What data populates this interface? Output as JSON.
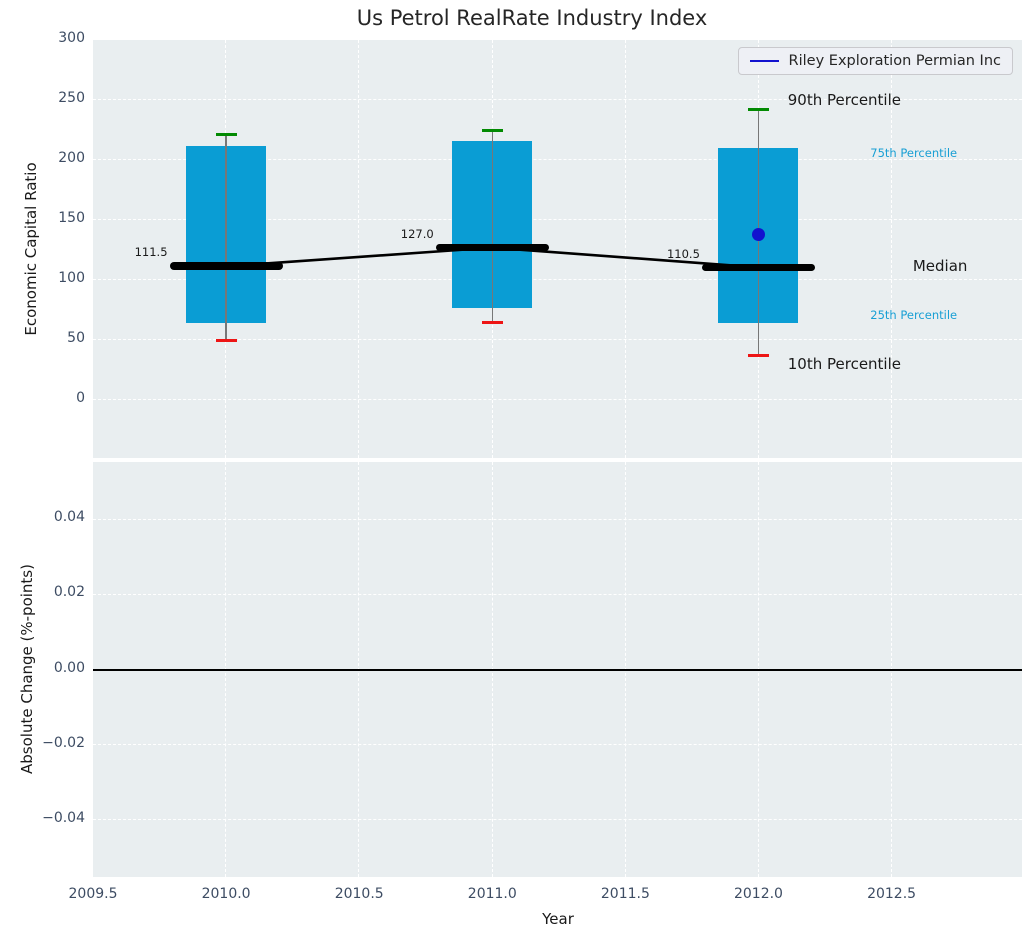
{
  "title": "Us Petrol RealRate Industry Index",
  "legend": {
    "label": "Riley Exploration Permian Inc"
  },
  "colors": {
    "bar": "#0a9dd4",
    "cap_90": "#028a02",
    "cap_10": "#ed1515",
    "median": "#000000",
    "whisker": "#777777",
    "company": "#1212cf",
    "axes_bg": "#e9eef0",
    "grid": "#ffffff",
    "tick_label": "#3d4c63",
    "text_dark": "#1a1a1a",
    "percentile_blue": "#189fd4",
    "zero_line": "#000000"
  },
  "chart_data": [
    {
      "type": "bar",
      "subtype": "percentile-boxes-with-median-line",
      "title": "Us Petrol RealRate Industry Index",
      "ylabel": "Economic Capital Ratio",
      "ylim": [
        -48.3,
        300
      ],
      "yticks": [
        {
          "v": 300,
          "label": "300"
        },
        {
          "v": 250,
          "label": "250"
        },
        {
          "v": 200,
          "label": "200"
        },
        {
          "v": 150,
          "label": "150"
        },
        {
          "v": 100,
          "label": "100"
        },
        {
          "v": 50,
          "label": "50"
        },
        {
          "v": 0,
          "label": "0"
        }
      ],
      "xlim": [
        2009.5,
        2012.99
      ],
      "xticks": [
        {
          "v": 2009.5,
          "label": "2009.5"
        },
        {
          "v": 2010.0,
          "label": "2010.0"
        },
        {
          "v": 2010.5,
          "label": "2010.5"
        },
        {
          "v": 2011.0,
          "label": "2011.0"
        },
        {
          "v": 2011.5,
          "label": "2011.5"
        },
        {
          "v": 2012.0,
          "label": "2012.0"
        },
        {
          "v": 2012.5,
          "label": "2012.5"
        }
      ],
      "grid": true,
      "legend_position": "upper right",
      "boxes": [
        {
          "year": 2010,
          "p10": 50,
          "p25": 64,
          "median": 111.5,
          "p75": 212,
          "p90": 221,
          "median_label": "111.5"
        },
        {
          "year": 2011,
          "p10": 65,
          "p25": 77,
          "median": 127.0,
          "p75": 216,
          "p90": 225,
          "median_label": "127.0"
        },
        {
          "year": 2012,
          "p10": 37.5,
          "p25": 64,
          "median": 110.5,
          "p75": 210,
          "p90": 242,
          "median_label": "110.5"
        }
      ],
      "median_trend": {
        "x": [
          2010,
          2011,
          2012
        ],
        "y": [
          111.5,
          127.0,
          110.5
        ]
      },
      "company_point": {
        "name": "Riley Exploration Permian Inc",
        "x": 2012,
        "y": 138
      },
      "annotations": [
        {
          "text": "90th Percentile",
          "x": 2012.11,
          "y": 250,
          "size": 15,
          "color": "#1a1a1a"
        },
        {
          "text": "75th Percentile",
          "x": 2012.42,
          "y": 206,
          "size": 11.5,
          "color": "#189fd4"
        },
        {
          "text": "Median",
          "x": 2012.58,
          "y": 111.5,
          "size": 15,
          "color": "#1a1a1a"
        },
        {
          "text": "25th Percentile",
          "x": 2012.42,
          "y": 71,
          "size": 11.5,
          "color": "#189fd4"
        },
        {
          "text": "10th Percentile",
          "x": 2012.11,
          "y": 30,
          "size": 15,
          "color": "#1a1a1a"
        }
      ]
    },
    {
      "type": "line",
      "ylabel": "Absolute Change (%-points)",
      "xlabel": "Year",
      "ylim": [
        -0.0553,
        0.0553
      ],
      "yticks": [
        {
          "v": 0.04,
          "label": "0.04"
        },
        {
          "v": 0.02,
          "label": "0.02"
        },
        {
          "v": 0.0,
          "label": "0.00"
        },
        {
          "v": -0.02,
          "label": "−0.02"
        },
        {
          "v": -0.04,
          "label": "−0.04"
        }
      ],
      "grid": true,
      "zero_line": 0.0,
      "series": []
    }
  ]
}
